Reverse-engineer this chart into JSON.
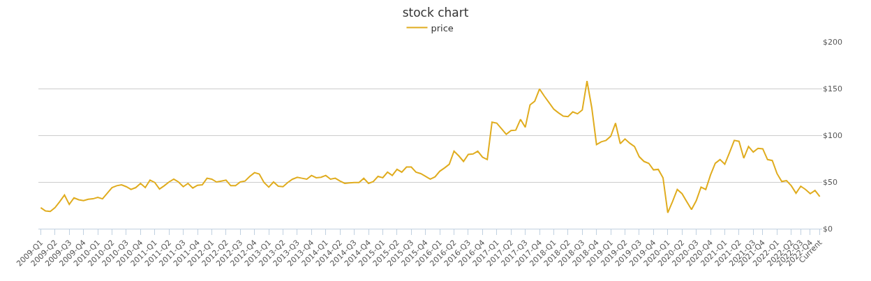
{
  "chart_data": {
    "type": "line",
    "title": "stock chart",
    "categories": [
      "2009-Q1",
      null,
      null,
      "2009-Q2",
      null,
      null,
      "2009-Q3",
      null,
      null,
      "2009-Q4",
      null,
      null,
      "2010-Q1",
      null,
      null,
      "2010-Q2",
      null,
      null,
      "2010-Q3",
      null,
      null,
      "2010-Q4",
      null,
      null,
      "2011-Q1",
      null,
      null,
      "2011-Q2",
      null,
      null,
      "2011-Q3",
      null,
      null,
      "2011-Q4",
      null,
      null,
      "2012-Q1",
      null,
      null,
      "2012-Q2",
      null,
      null,
      "2012-Q3",
      null,
      null,
      "2012-Q4",
      null,
      null,
      "2013-Q1",
      null,
      null,
      "2013-Q2",
      null,
      null,
      "2013-Q3",
      null,
      null,
      "2013-Q4",
      null,
      null,
      "2014-Q1",
      null,
      null,
      "2014-Q2",
      null,
      null,
      "2014-Q3",
      null,
      null,
      "2014-Q4",
      null,
      null,
      "2015-Q1",
      null,
      null,
      "2015-Q2",
      null,
      null,
      "2015-Q3",
      null,
      null,
      "2015-Q4",
      null,
      null,
      "2016-Q1",
      null,
      null,
      "2016-Q2",
      null,
      null,
      "2016-Q3",
      null,
      null,
      "2016-Q4",
      null,
      null,
      "2017-Q1",
      null,
      null,
      "2017-Q2",
      null,
      null,
      "2017-Q3",
      null,
      null,
      "2017-Q4",
      null,
      null,
      "2018-Q1",
      null,
      null,
      "2018-Q2",
      null,
      null,
      "2018-Q3",
      null,
      null,
      "2018-Q4",
      null,
      null,
      "2019-Q1",
      null,
      null,
      "2019-Q2",
      null,
      null,
      "2019-Q3",
      null,
      null,
      "2019-Q4",
      null,
      null,
      "2020-Q1",
      null,
      null,
      "2020-Q2",
      null,
      null,
      "2020-Q3",
      null,
      null,
      "2020-Q4",
      null,
      null,
      "2021-Q1",
      null,
      null,
      "2021-Q2",
      null,
      null,
      "2021-Q3",
      null,
      "2021-Q4",
      null,
      null,
      "2022-Q1",
      null,
      null,
      "2022-Q2",
      null,
      "2022-Q3",
      null,
      "2022-Q4",
      null,
      "Current"
    ],
    "series": [
      {
        "name": "price",
        "color": "#e0ac1e",
        "values": [
          22.5,
          19,
          18.5,
          22.5,
          29,
          36,
          26,
          33,
          31,
          30,
          31.5,
          32,
          33.5,
          32,
          38,
          44,
          46,
          47,
          45,
          42,
          44,
          48.5,
          44,
          52,
          49.5,
          42.5,
          46,
          50,
          53,
          50,
          45,
          48.5,
          43.5,
          46.5,
          47,
          54,
          53,
          50,
          51,
          52,
          46,
          46,
          50,
          51,
          56,
          60,
          58.5,
          49.5,
          44.5,
          50,
          45.5,
          45,
          49.5,
          53,
          55,
          54,
          53,
          57,
          54.5,
          55,
          57,
          53,
          54,
          51,
          48.5,
          49,
          49.5,
          49.5,
          54,
          48.5,
          50.5,
          56,
          54.5,
          60.5,
          57,
          63.5,
          60.5,
          66,
          66,
          60.5,
          59,
          56,
          53,
          55.5,
          61.5,
          65,
          69,
          83,
          78,
          72,
          79.5,
          80,
          83,
          76.5,
          74,
          114,
          113,
          107,
          101,
          105,
          105.5,
          117,
          108.5,
          132.5,
          136.5,
          149.5,
          142,
          135,
          128,
          124,
          120.5,
          120,
          125,
          123,
          127,
          158,
          129.5,
          90,
          93,
          94.5,
          99,
          113,
          91,
          96,
          91.5,
          88,
          77,
          72,
          70,
          63,
          63.5,
          54.5,
          17,
          29,
          42,
          37.5,
          29,
          20.5,
          30,
          44.5,
          42,
          57.5,
          70,
          74,
          69,
          81.5,
          94.5,
          93.5,
          75.5,
          88,
          82,
          86,
          85.5,
          74,
          73,
          59,
          50.5,
          51.5,
          46,
          38,
          45.5,
          42,
          37.5,
          41,
          34.5
        ]
      }
    ],
    "ylim": [
      0,
      200
    ],
    "yticks": [
      {
        "value": 0,
        "label": "$0"
      },
      {
        "value": 50,
        "label": "$50"
      },
      {
        "value": 100,
        "label": "$100"
      },
      {
        "value": 150,
        "label": "$150"
      },
      {
        "value": 200,
        "label": "$200"
      }
    ],
    "grid": "y",
    "legend": "top"
  }
}
